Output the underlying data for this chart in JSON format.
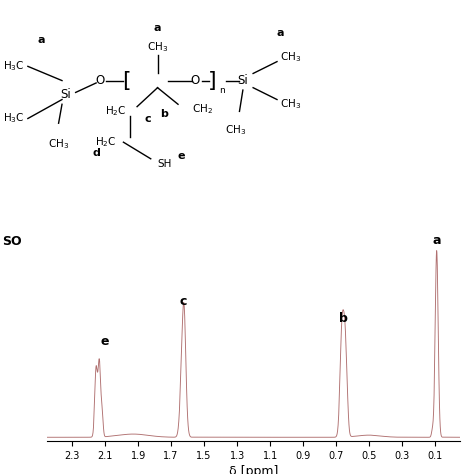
{
  "xlim": [
    2.45,
    -0.05
  ],
  "ylim": [
    -0.02,
    1.1
  ],
  "xlabel": "δ [ppm]",
  "xticks": [
    2.3,
    2.1,
    1.9,
    1.7,
    1.5,
    1.3,
    1.1,
    0.9,
    0.7,
    0.5,
    0.3,
    0.1
  ],
  "line_color": "#b07070",
  "background_color": "#ffffff",
  "fig_size": [
    4.74,
    4.74
  ],
  "dpi": 100
}
